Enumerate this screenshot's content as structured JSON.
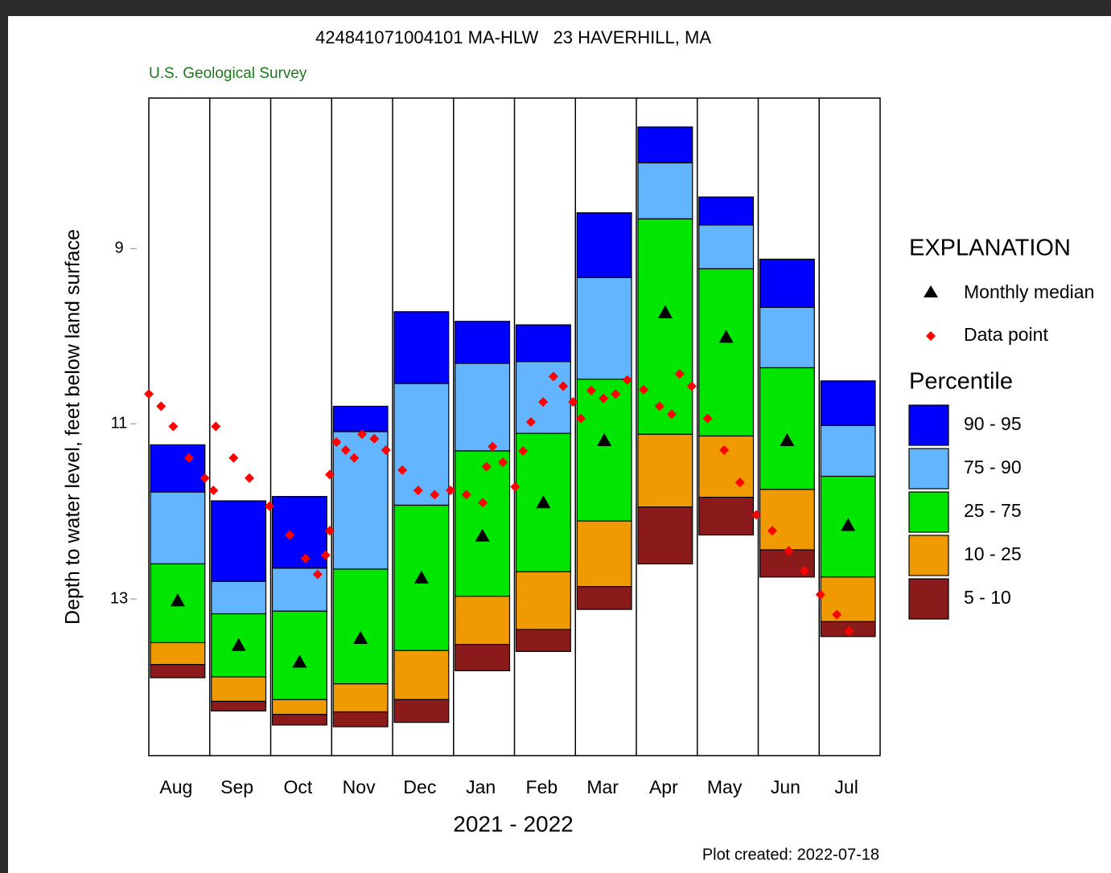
{
  "chart_data": {
    "type": "percentile_bar",
    "title": "424841071004101 MA-HLW   23 HAVERHILL, MA",
    "subtitle": "U.S. Geological Survey",
    "x_label": "2021 - 2022",
    "y_label": "Depth to water level, feet below land surface",
    "footer": "Plot created: 2022-07-18",
    "categories": [
      "Aug",
      "Sep",
      "Oct",
      "Nov",
      "Dec",
      "Jan",
      "Feb",
      "Mar",
      "Apr",
      "May",
      "Jun",
      "Jul"
    ],
    "ylim": [
      7.28,
      14.79
    ],
    "y_inverted": true,
    "yticks": [
      9,
      11,
      13
    ],
    "xlim": [
      0,
      12
    ],
    "legend_title": "EXPLANATION",
    "legend_subtitle": "Percentile",
    "boundaries": [
      {
        "values": [
          11.24,
          11.88,
          11.83,
          10.8,
          9.72,
          9.83,
          9.87,
          8.59,
          7.61,
          8.41,
          9.12,
          10.51
        ]
      },
      {
        "values": [
          11.78,
          12.8,
          12.65,
          11.09,
          10.54,
          10.31,
          10.29,
          9.33,
          8.02,
          8.73,
          9.67,
          11.02
        ]
      },
      {
        "values": [
          12.6,
          13.17,
          13.14,
          12.66,
          11.93,
          11.31,
          11.11,
          10.49,
          8.66,
          9.23,
          10.36,
          11.6
        ]
      },
      {
        "values": [
          13.5,
          13.89,
          14.15,
          13.97,
          13.59,
          12.97,
          12.69,
          12.11,
          11.12,
          11.14,
          11.75,
          12.75
        ]
      },
      {
        "values": [
          13.75,
          14.17,
          14.32,
          14.29,
          14.15,
          13.52,
          13.35,
          12.86,
          11.95,
          11.84,
          12.44,
          13.26
        ]
      },
      {
        "values": [
          13.9,
          14.28,
          14.44,
          14.46,
          14.41,
          13.82,
          13.6,
          13.12,
          12.6,
          12.27,
          12.75,
          13.43
        ]
      }
    ],
    "bands": [
      {
        "name": "90 - 95",
        "color": "#0000ff"
      },
      {
        "name": "75 - 90",
        "color": "#63b5ff"
      },
      {
        "name": "25 - 75",
        "color": "#00e600"
      },
      {
        "name": "10 - 25",
        "color": "#ee9a00"
      },
      {
        "name": "5 - 10",
        "color": "#8b1a1a"
      }
    ],
    "median": {
      "name": "Monthly median",
      "color": "#000000",
      "values": [
        13.02,
        13.53,
        13.72,
        13.45,
        12.76,
        12.28,
        11.9,
        11.19,
        9.73,
        10.01,
        11.19,
        12.16
      ]
    },
    "data_points": {
      "name": "Data point",
      "color": "#ff0000",
      "x": [
        0,
        0.2,
        0.4,
        0.66,
        0.92,
        1.06,
        1.1,
        1.39,
        1.65,
        1.98,
        2.31,
        2.57,
        2.77,
        2.9,
        2.97,
        2.97,
        3.08,
        3.23,
        3.37,
        3.5,
        3.7,
        3.89,
        4.16,
        4.42,
        4.69,
        4.95,
        5.21,
        5.48,
        5.54,
        5.64,
        5.81,
        6.01,
        6.14,
        6.27,
        6.47,
        6.64,
        6.8,
        6.96,
        7.09,
        7.26,
        7.46,
        7.66,
        7.85,
        8.12,
        8.38,
        8.58,
        8.71,
        8.91,
        9.17,
        9.44,
        9.7,
        9.97,
        10.23,
        10.5,
        10.76,
        11.02,
        11.29,
        11.49
      ],
      "values": [
        10.66,
        10.8,
        11.03,
        11.39,
        11.62,
        11.76,
        11.03,
        11.39,
        11.62,
        11.94,
        12.27,
        12.54,
        12.72,
        12.5,
        12.22,
        11.58,
        11.21,
        11.3,
        11.39,
        11.12,
        11.17,
        11.3,
        11.53,
        11.76,
        11.81,
        11.76,
        11.81,
        11.9,
        11.49,
        11.26,
        11.44,
        11.72,
        11.31,
        10.98,
        10.75,
        10.46,
        10.57,
        10.75,
        10.94,
        10.62,
        10.71,
        10.66,
        10.5,
        10.61,
        10.8,
        10.89,
        10.43,
        10.57,
        10.94,
        11.3,
        11.67,
        12.04,
        12.22,
        12.45,
        12.68,
        12.95,
        13.18,
        13.37
      ]
    }
  }
}
